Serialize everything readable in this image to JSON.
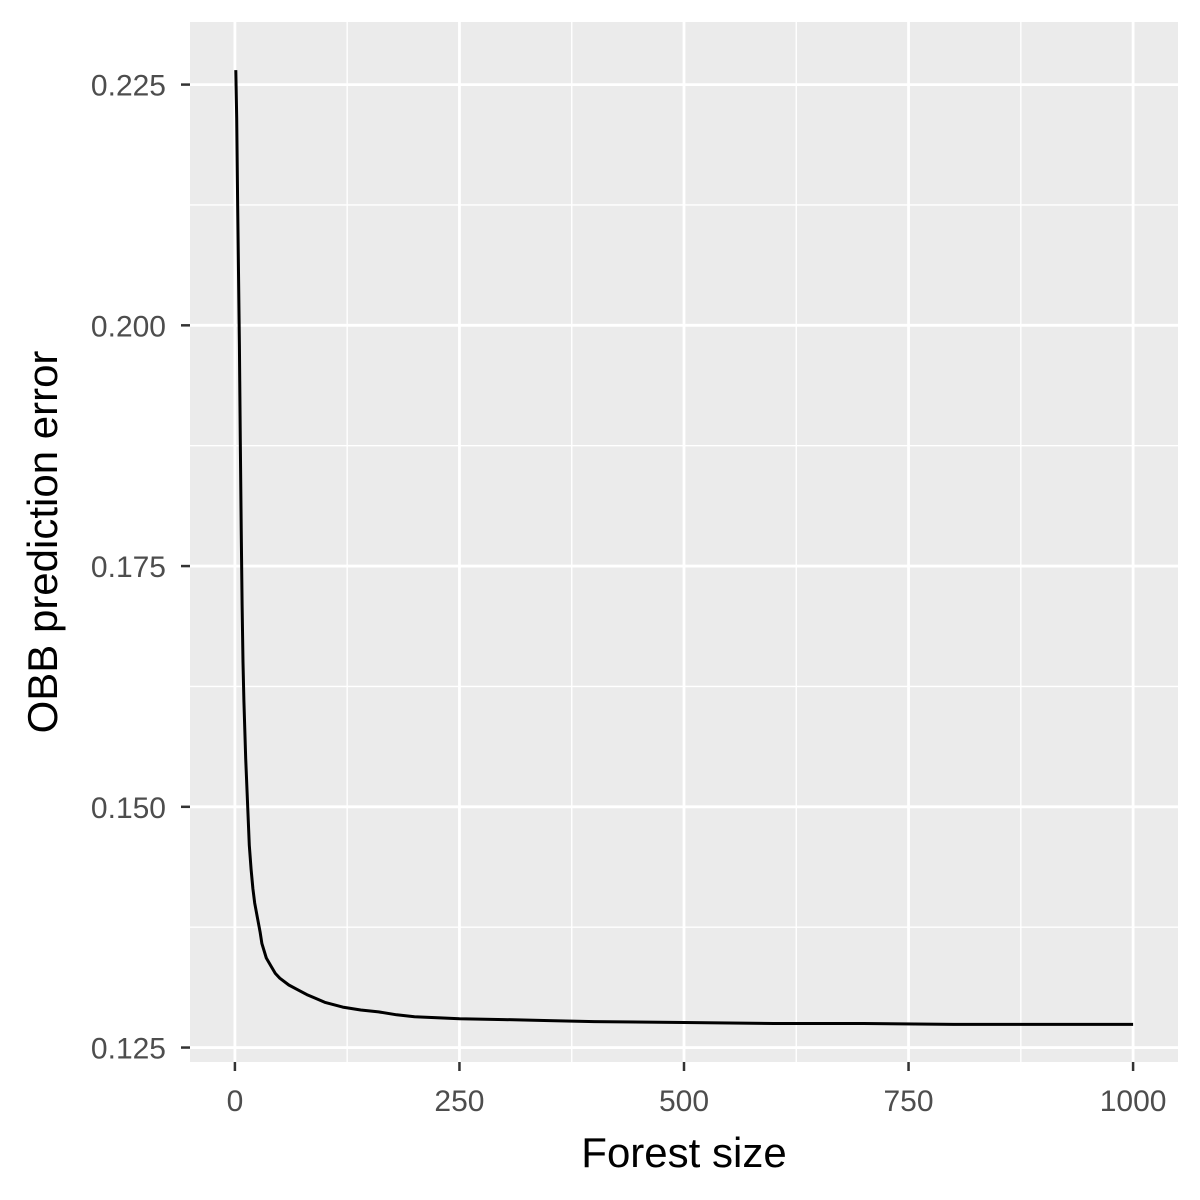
{
  "chart_data": {
    "type": "line",
    "title": "",
    "xlabel": "Forest size",
    "ylabel": "OBB prediction error",
    "xlim": [
      -50,
      1050
    ],
    "ylim": [
      0.1235,
      0.2315
    ],
    "x_ticks": [
      0,
      250,
      500,
      750,
      1000
    ],
    "x_tick_labels": [
      "0",
      "250",
      "500",
      "750",
      "1000"
    ],
    "y_ticks": [
      0.125,
      0.15,
      0.175,
      0.2,
      0.225
    ],
    "y_tick_labels": [
      "0.125",
      "0.150",
      "0.175",
      "0.200",
      "0.225"
    ],
    "grid": true,
    "legend": "none",
    "colors": {
      "panel": "#ebebeb",
      "grid": "#ffffff",
      "line": "#000000",
      "tick_text": "#4d4d4d"
    },
    "series": [
      {
        "x": [
          1,
          2,
          3,
          4,
          5,
          6,
          7,
          8,
          9,
          10,
          12,
          14,
          16,
          18,
          20,
          22,
          25,
          28,
          30,
          35,
          40,
          45,
          50,
          60,
          70,
          80,
          90,
          100,
          120,
          140,
          160,
          180,
          200,
          250,
          300,
          350,
          400,
          500,
          600,
          700,
          800,
          900,
          1000
        ],
        "y": [
          0.2265,
          0.2215,
          0.213,
          0.2055,
          0.198,
          0.188,
          0.179,
          0.171,
          0.165,
          0.161,
          0.155,
          0.1505,
          0.146,
          0.1435,
          0.1415,
          0.14,
          0.1385,
          0.137,
          0.1358,
          0.1343,
          0.1335,
          0.1327,
          0.1322,
          0.1315,
          0.131,
          0.1305,
          0.1301,
          0.1297,
          0.1292,
          0.1289,
          0.1287,
          0.1284,
          0.1282,
          0.128,
          0.1279,
          0.1278,
          0.1277,
          0.1276,
          0.1275,
          0.1275,
          0.1274,
          0.1274,
          0.1274
        ]
      }
    ]
  }
}
